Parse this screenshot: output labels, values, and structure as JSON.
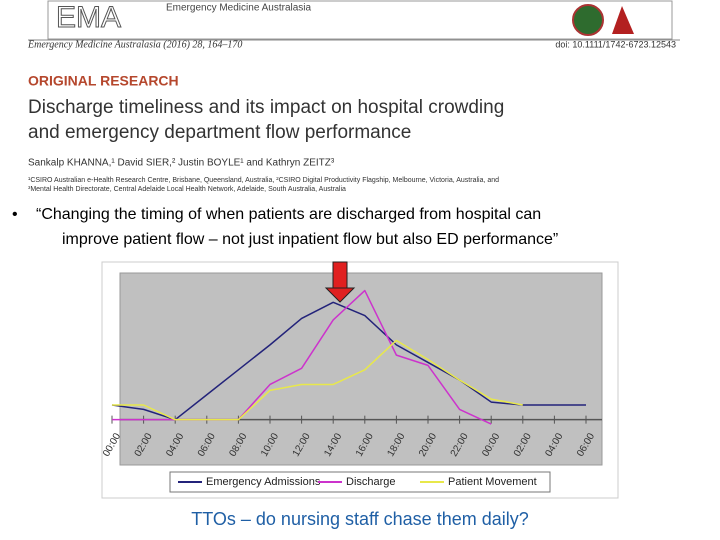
{
  "header": {
    "logo": "EMA",
    "journal": "Emergency Medicine Australasia",
    "citation": "Emergency Medicine Australasia (2016) 28, 164–170",
    "doi": "doi: 10.1111/1742-6723.12543",
    "section": "ORIGINAL RESEARCH",
    "title": [
      "Discharge timeliness and its impact on hospital crowding",
      "and emergency department flow performance"
    ],
    "authors": "Sankalp KHANNA,¹ David SIER,² Justin BOYLE¹ and Kathryn ZEITZ³",
    "affiliations": [
      "¹CSIRO Australian e-Health Research Centre, Brisbane, Queensland, Australia, ²CSIRO Digital Productivity Flagship, Melbourne, Victoria, Australia, and",
      "³Mental Health Directorate, Central Adelaide Local Health Network, Adelaide, South Australia, Australia"
    ]
  },
  "bullet": "•",
  "quote": [
    "“Changing the timing of when patients are discharged from hospital can",
    "improve patient flow – not just inpatient flow but also ED performance”"
  ],
  "chart_data": {
    "type": "line",
    "categories": [
      "00:00",
      "02:00",
      "04:00",
      "06:00",
      "08:00",
      "10:00",
      "12:00",
      "14:00",
      "16:00",
      "18:00",
      "20:00",
      "22:00",
      "00:00",
      "02:00",
      "04:00",
      "06:00"
    ],
    "ylim": [
      -20,
      100
    ],
    "series": [
      {
        "name": "Emergency Admissions",
        "color": "#23237a",
        "values": [
          10,
          7,
          0,
          17,
          34,
          51,
          69,
          80,
          71,
          51,
          39,
          27,
          12,
          10,
          10,
          10
        ]
      },
      {
        "name": "Discharge",
        "color": "#cc33cc",
        "values": [
          0,
          0,
          0,
          0,
          0,
          24,
          35,
          68,
          88,
          44,
          37,
          7,
          -3,
          null,
          null,
          null
        ]
      },
      {
        "name": "Patient Movement",
        "color": "#e8e84a",
        "values": [
          10,
          10,
          0,
          0,
          0,
          20,
          24,
          24,
          34,
          54,
          41,
          27,
          14,
          10,
          null,
          null
        ]
      }
    ]
  },
  "caption": "TTOs – do nursing staff chase them daily?"
}
